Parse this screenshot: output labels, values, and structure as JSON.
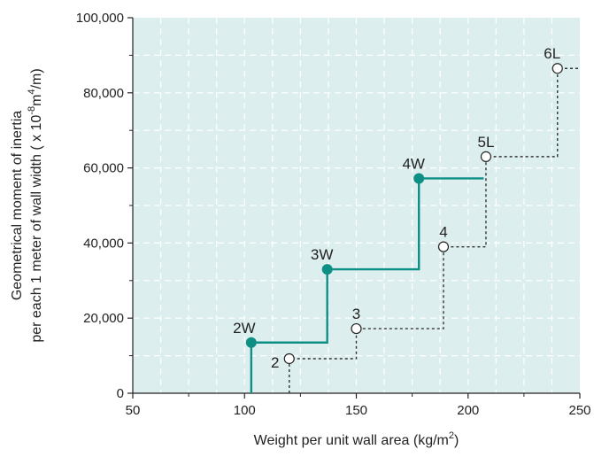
{
  "chart_data": {
    "type": "line",
    "xlabel_prefix": "Weight per unit wall area (kg/m",
    "xlabel_sup": "2",
    "xlabel_suffix": ")",
    "ylabel_line1": "Geometrical moment of inertia",
    "ylabel_line2_prefix": "per each 1 meter of wall width ( x 10",
    "ylabel_line2_sup1": "-8",
    "ylabel_line2_mid": "m",
    "ylabel_line2_sup2": "4",
    "ylabel_line2_suffix": "/m)",
    "xlim": [
      50,
      250
    ],
    "ylim": [
      0,
      100000
    ],
    "x_ticks": [
      50,
      100,
      150,
      200,
      250
    ],
    "x_tick_labels": [
      "50",
      "100",
      "150",
      "200",
      "250"
    ],
    "y_ticks": [
      0,
      20000,
      40000,
      60000,
      80000,
      100000
    ],
    "y_tick_labels": [
      "0",
      "20,000",
      "40,000",
      "60,000",
      "80,000",
      "100,000"
    ],
    "grid": true,
    "series": [
      {
        "style": "solid-teal-filled-markers",
        "color": "#0e8f85",
        "step_end_x": 207,
        "points": [
          {
            "label": "2W",
            "x": 103,
            "y": 13500
          },
          {
            "label": "3W",
            "x": 137,
            "y": 33000
          },
          {
            "label": "4W",
            "x": 178,
            "y": 57200
          }
        ]
      },
      {
        "style": "dashed-black-open-markers",
        "color": "#333333",
        "step_end_x": 250,
        "points": [
          {
            "label": "2",
            "x": 120,
            "y": 9200
          },
          {
            "label": "3",
            "x": 150,
            "y": 17200
          },
          {
            "label": "4",
            "x": 189,
            "y": 39000
          },
          {
            "label": "5L",
            "x": 208,
            "y": 63000
          },
          {
            "label": "6L",
            "x": 240,
            "y": 86500
          }
        ]
      }
    ]
  },
  "colors": {
    "plot_background": "#dcefee",
    "grid": "#ffffff",
    "teal": "#0e8f85",
    "dark": "#333333"
  }
}
